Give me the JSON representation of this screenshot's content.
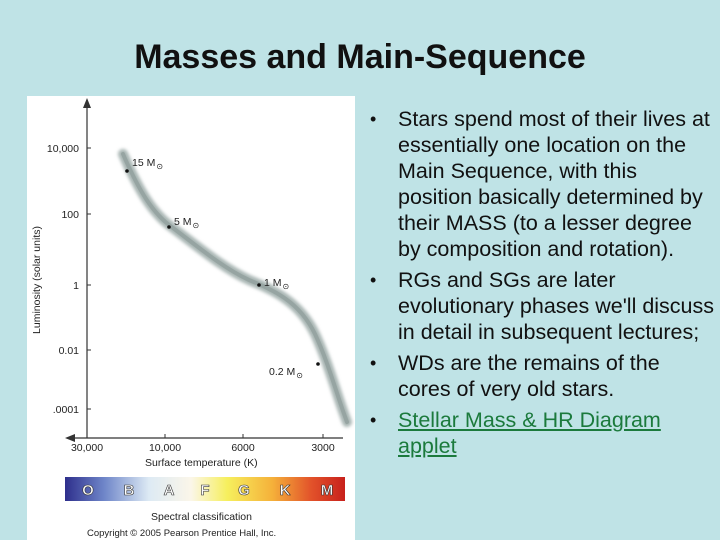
{
  "slide": {
    "title": "Masses and Main-Sequence"
  },
  "hr_diagram": {
    "y_axis_label": "Luminosity (solar units)",
    "y_ticks": [
      "10,000",
      "100",
      "1",
      "0.01",
      ".0001"
    ],
    "x_axis_label": "Surface temperature (K)",
    "x_ticks": [
      "30,000",
      "10,000",
      "6000",
      "3000"
    ],
    "mass_labels": [
      {
        "text": "15 M",
        "sub": "⊙"
      },
      {
        "text": "5 M",
        "sub": "⊙"
      },
      {
        "text": "1 M",
        "sub": "⊙"
      },
      {
        "text": "0.2 M",
        "sub": "⊙"
      }
    ],
    "spectral_classes": [
      "O",
      "B",
      "A",
      "F",
      "G",
      "K",
      "M"
    ],
    "spectral_label": "Spectral classification",
    "copyright": "Copyright © 2005 Pearson Prentice Hall, Inc.",
    "colors": {
      "main_sequence": "#9aa8a6",
      "spectral_O": "#3b3c9a",
      "spectral_M": "#d42a1e"
    }
  },
  "bullets": [
    {
      "text": "Stars spend most of their lives at essentially one location on the Main Sequence, with this position basically determined by their MASS (to a lesser degree by composition and rotation)."
    },
    {
      "text": "RGs and SGs are later evolutionary phases we'll discuss in detail in subsequent lectures;"
    },
    {
      "text": "WDs are the remains of the cores of very old stars."
    },
    {
      "link": "Stellar Mass & HR Diagram applet"
    }
  ]
}
